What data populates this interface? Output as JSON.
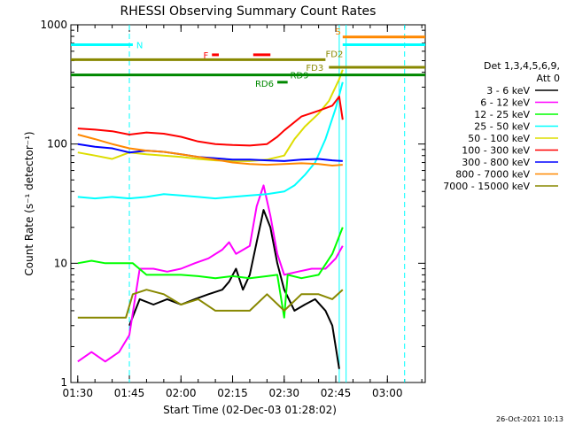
{
  "chart_data": {
    "type": "line",
    "title": "RHESSI Observing Summary Count Rates",
    "xlabel": "Start Time (02-Dec-03 01:28:02)",
    "ylabel": "Count Rate (s⁻¹ detector⁻¹)",
    "y_scale": "log",
    "ylim": [
      1,
      1000
    ],
    "xlim": [
      "01:28",
      "03:11"
    ],
    "x_ticks": [
      "01:30",
      "01:45",
      "02:00",
      "02:15",
      "02:30",
      "02:45",
      "03:00"
    ],
    "y_ticks": [
      "1",
      "10",
      "100",
      "1000"
    ],
    "timestamp": "26-Oct-2021 10:13",
    "legend": {
      "position": "right",
      "header": [
        "Det 1,3,4,5,6,9,",
        "Att 0"
      ],
      "entries": [
        {
          "label": "3 - 6 keV",
          "color": "#000000"
        },
        {
          "label": "6 - 12 keV",
          "color": "#ff00ff"
        },
        {
          "label": "12 - 25 keV",
          "color": "#00ff00"
        },
        {
          "label": "25 - 50 keV",
          "color": "#00ffff"
        },
        {
          "label": "50 - 100 keV",
          "color": "#dddd00"
        },
        {
          "label": "100 - 300 keV",
          "color": "#ff0000"
        },
        {
          "label": "300 - 800 keV",
          "color": "#0000ff"
        },
        {
          "label": "800 - 7000 keV",
          "color": "#ff8800"
        },
        {
          "label": "7000 - 15000 keV",
          "color": "#888800"
        }
      ]
    },
    "flag_bars": [
      {
        "label": "N",
        "color": "#00ffff",
        "ranges": [
          [
            "01:28",
            "01:46"
          ]
        ],
        "y": 680
      },
      {
        "label": "F",
        "color": "#ff0000",
        "ranges": [
          [
            "02:09",
            "02:11"
          ],
          [
            "02:21",
            "02:26"
          ]
        ],
        "y": 560
      },
      {
        "label": "S",
        "color": "#ff8800",
        "ranges": [
          [
            "02:47",
            "03:11"
          ]
        ],
        "y": 790
      },
      {
        "label": "",
        "color": "#00ffff",
        "ranges": [
          [
            "02:47",
            "03:11"
          ]
        ],
        "y": 680
      },
      {
        "label": "FD2",
        "color": "#888800",
        "ranges": [
          [
            "01:28",
            "02:42"
          ]
        ],
        "y": 510
      },
      {
        "label": "FD3",
        "color": "#888800",
        "ranges": [
          [
            "02:43",
            "03:11"
          ]
        ],
        "y": 440
      },
      {
        "label": "RD9",
        "color": "#008800",
        "ranges": [
          [
            "01:28",
            "03:11"
          ]
        ],
        "y": 380
      },
      {
        "label": "RD6",
        "color": "#008800",
        "ranges": [
          [
            "02:28",
            "02:31"
          ]
        ],
        "y": 330
      }
    ],
    "vertical_markers": [
      {
        "time": "01:45",
        "color": "#00ffff",
        "style": "dashed"
      },
      {
        "time": "02:46",
        "color": "#00ffff",
        "style": "solid"
      },
      {
        "time": "02:48",
        "color": "#00ffff",
        "style": "solid"
      },
      {
        "time": "03:05",
        "color": "#00ffff",
        "style": "dashed"
      }
    ],
    "series": [
      {
        "name": "3 - 6 keV",
        "color": "#000000",
        "points": [
          [
            "01:45",
            3.0
          ],
          [
            "01:48",
            5.0
          ],
          [
            "01:52",
            4.5
          ],
          [
            "01:56",
            5.0
          ],
          [
            "02:00",
            4.5
          ],
          [
            "02:04",
            5.0
          ],
          [
            "02:08",
            5.5
          ],
          [
            "02:12",
            6.0
          ],
          [
            "02:14",
            7.0
          ],
          [
            "02:16",
            9.0
          ],
          [
            "02:18",
            6.0
          ],
          [
            "02:20",
            8.0
          ],
          [
            "02:22",
            15.0
          ],
          [
            "02:24",
            28.0
          ],
          [
            "02:26",
            20.0
          ],
          [
            "02:28",
            10.0
          ],
          [
            "02:30",
            6.0
          ],
          [
            "02:33",
            4.0
          ],
          [
            "02:36",
            4.5
          ],
          [
            "02:39",
            5.0
          ],
          [
            "02:42",
            4.0
          ],
          [
            "02:44",
            3.0
          ],
          [
            "02:46",
            1.3
          ]
        ]
      },
      {
        "name": "6 - 12 keV",
        "color": "#ff00ff",
        "points": [
          [
            "01:30",
            1.5
          ],
          [
            "01:34",
            1.8
          ],
          [
            "01:38",
            1.5
          ],
          [
            "01:42",
            1.8
          ],
          [
            "01:45",
            2.5
          ],
          [
            "01:48",
            9.0
          ],
          [
            "01:52",
            9.0
          ],
          [
            "01:56",
            8.5
          ],
          [
            "02:00",
            9.0
          ],
          [
            "02:04",
            10.0
          ],
          [
            "02:08",
            11.0
          ],
          [
            "02:12",
            13.0
          ],
          [
            "02:14",
            15.0
          ],
          [
            "02:16",
            12.0
          ],
          [
            "02:20",
            14.0
          ],
          [
            "02:22",
            30.0
          ],
          [
            "02:24",
            45.0
          ],
          [
            "02:26",
            25.0
          ],
          [
            "02:28",
            12.0
          ],
          [
            "02:30",
            8.0
          ],
          [
            "02:34",
            8.5
          ],
          [
            "02:38",
            9.0
          ],
          [
            "02:42",
            9.0
          ],
          [
            "02:45",
            11.0
          ],
          [
            "02:47",
            14.0
          ]
        ]
      },
      {
        "name": "12 - 25 keV",
        "color": "#00ff00",
        "points": [
          [
            "01:30",
            10.0
          ],
          [
            "01:34",
            10.5
          ],
          [
            "01:38",
            10.0
          ],
          [
            "01:42",
            10.0
          ],
          [
            "01:46",
            10.0
          ],
          [
            "01:50",
            8.0
          ],
          [
            "01:55",
            8.0
          ],
          [
            "02:00",
            8.0
          ],
          [
            "02:05",
            7.8
          ],
          [
            "02:10",
            7.5
          ],
          [
            "02:15",
            7.8
          ],
          [
            "02:20",
            7.5
          ],
          [
            "02:25",
            7.8
          ],
          [
            "02:28",
            8.0
          ],
          [
            "02:30",
            3.5
          ],
          [
            "02:31",
            8.0
          ],
          [
            "02:35",
            7.5
          ],
          [
            "02:40",
            8.0
          ],
          [
            "02:44",
            12.0
          ],
          [
            "02:47",
            20.0
          ]
        ]
      },
      {
        "name": "25 - 50 keV",
        "color": "#00ffff",
        "points": [
          [
            "01:30",
            36.0
          ],
          [
            "01:35",
            35.0
          ],
          [
            "01:40",
            36.0
          ],
          [
            "01:45",
            35.0
          ],
          [
            "01:50",
            36.0
          ],
          [
            "01:55",
            38.0
          ],
          [
            "02:00",
            37.0
          ],
          [
            "02:05",
            36.0
          ],
          [
            "02:10",
            35.0
          ],
          [
            "02:15",
            36.0
          ],
          [
            "02:20",
            37.0
          ],
          [
            "02:25",
            38.0
          ],
          [
            "02:30",
            40.0
          ],
          [
            "02:33",
            45.0
          ],
          [
            "02:36",
            55.0
          ],
          [
            "02:39",
            70.0
          ],
          [
            "02:42",
            110.0
          ],
          [
            "02:45",
            200.0
          ],
          [
            "02:47",
            330.0
          ]
        ]
      },
      {
        "name": "50 - 100 keV",
        "color": "#dddd00",
        "points": [
          [
            "01:30",
            85.0
          ],
          [
            "01:35",
            80.0
          ],
          [
            "01:40",
            75.0
          ],
          [
            "01:45",
            85.0
          ],
          [
            "01:50",
            82.0
          ],
          [
            "01:55",
            80.0
          ],
          [
            "02:00",
            78.0
          ],
          [
            "02:05",
            75.0
          ],
          [
            "02:10",
            73.0
          ],
          [
            "02:15",
            72.0
          ],
          [
            "02:20",
            72.0
          ],
          [
            "02:25",
            74.0
          ],
          [
            "02:30",
            80.0
          ],
          [
            "02:33",
            110.0
          ],
          [
            "02:36",
            140.0
          ],
          [
            "02:40",
            180.0
          ],
          [
            "02:43",
            230.0
          ],
          [
            "02:46",
            350.0
          ],
          [
            "02:47",
            420.0
          ]
        ]
      },
      {
        "name": "100 - 300 keV",
        "color": "#ff0000",
        "points": [
          [
            "01:30",
            135.0
          ],
          [
            "01:35",
            132.0
          ],
          [
            "01:40",
            128.0
          ],
          [
            "01:45",
            120.0
          ],
          [
            "01:50",
            125.0
          ],
          [
            "01:55",
            122.0
          ],
          [
            "02:00",
            115.0
          ],
          [
            "02:05",
            105.0
          ],
          [
            "02:10",
            100.0
          ],
          [
            "02:15",
            98.0
          ],
          [
            "02:20",
            97.0
          ],
          [
            "02:25",
            100.0
          ],
          [
            "02:28",
            115.0
          ],
          [
            "02:30",
            130.0
          ],
          [
            "02:35",
            170.0
          ],
          [
            "02:40",
            190.0
          ],
          [
            "02:44",
            210.0
          ],
          [
            "02:46",
            250.0
          ],
          [
            "02:47",
            160.0
          ]
        ]
      },
      {
        "name": "300 - 800 keV",
        "color": "#0000ff",
        "points": [
          [
            "01:30",
            100.0
          ],
          [
            "01:35",
            95.0
          ],
          [
            "01:40",
            92.0
          ],
          [
            "01:45",
            85.0
          ],
          [
            "01:50",
            88.0
          ],
          [
            "01:55",
            86.0
          ],
          [
            "02:00",
            82.0
          ],
          [
            "02:05",
            78.0
          ],
          [
            "02:10",
            76.0
          ],
          [
            "02:15",
            74.0
          ],
          [
            "02:20",
            74.0
          ],
          [
            "02:25",
            73.0
          ],
          [
            "02:30",
            72.0
          ],
          [
            "02:35",
            74.0
          ],
          [
            "02:40",
            75.0
          ],
          [
            "02:44",
            73.0
          ],
          [
            "02:47",
            72.0
          ]
        ]
      },
      {
        "name": "800 - 7000 keV",
        "color": "#ff8800",
        "points": [
          [
            "01:30",
            120.0
          ],
          [
            "01:35",
            110.0
          ],
          [
            "01:40",
            100.0
          ],
          [
            "01:45",
            92.0
          ],
          [
            "01:50",
            88.0
          ],
          [
            "01:55",
            86.0
          ],
          [
            "02:00",
            82.0
          ],
          [
            "02:05",
            78.0
          ],
          [
            "02:10",
            74.0
          ],
          [
            "02:15",
            70.0
          ],
          [
            "02:20",
            68.0
          ],
          [
            "02:25",
            67.0
          ],
          [
            "02:30",
            68.0
          ],
          [
            "02:35",
            69.0
          ],
          [
            "02:40",
            68.0
          ],
          [
            "02:44",
            66.0
          ],
          [
            "02:47",
            67.0
          ]
        ]
      },
      {
        "name": "7000 - 15000 keV",
        "color": "#888800",
        "points": [
          [
            "01:30",
            3.5
          ],
          [
            "01:35",
            3.5
          ],
          [
            "01:40",
            3.5
          ],
          [
            "01:44",
            3.5
          ],
          [
            "01:46",
            5.5
          ],
          [
            "01:50",
            6.0
          ],
          [
            "01:55",
            5.5
          ],
          [
            "02:00",
            4.5
          ],
          [
            "02:05",
            5.0
          ],
          [
            "02:10",
            4.0
          ],
          [
            "02:15",
            4.0
          ],
          [
            "02:20",
            4.0
          ],
          [
            "02:25",
            5.5
          ],
          [
            "02:30",
            4.0
          ],
          [
            "02:35",
            5.5
          ],
          [
            "02:40",
            5.5
          ],
          [
            "02:44",
            5.0
          ],
          [
            "02:47",
            6.0
          ]
        ]
      }
    ]
  }
}
